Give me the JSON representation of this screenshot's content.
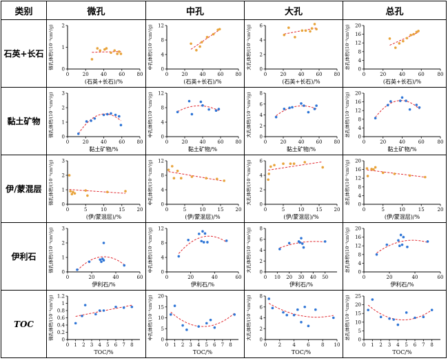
{
  "header": {
    "category": "类别",
    "columns": [
      "微孔",
      "中孔",
      "大孔",
      "总孔"
    ]
  },
  "rows": [
    {
      "label": "石英+长石",
      "italic": false
    },
    {
      "label": "黏土矿物",
      "italic": false
    },
    {
      "label": "伊/蒙混层",
      "italic": false
    },
    {
      "label": "伊利石",
      "italic": false
    },
    {
      "label": "TOC",
      "italic": true
    }
  ],
  "colors": {
    "points": "#2e75d6",
    "orange": "#e8a33a",
    "fit": "#e0242a",
    "axis": "#000000"
  },
  "chart_data": [
    {
      "type": "scatter",
      "row": 0,
      "col": 0,
      "title": "",
      "xlabel": "(石英+长石)/%",
      "ylabel": "微孔体积/(10⁻³cm³/g)",
      "xlim": [
        0,
        80
      ],
      "ylim": [
        0,
        2
      ],
      "xticks": [
        0,
        20,
        40,
        60,
        80
      ],
      "yticks": [
        0,
        1,
        2
      ],
      "point_color": "orange",
      "fit": "linear",
      "series": [
        {
          "x": [
            27,
            33,
            36,
            41,
            43,
            48,
            52,
            55,
            57,
            59
          ],
          "y": [
            0.45,
            0.95,
            0.85,
            0.9,
            0.95,
            0.75,
            0.85,
            0.7,
            0.8,
            0.7
          ]
        }
      ]
    },
    {
      "type": "scatter",
      "row": 0,
      "col": 1,
      "title": "",
      "xlabel": "(石英+长石)/%",
      "ylabel": "中孔体积/(10⁻³cm³/g)",
      "xlim": [
        0,
        80
      ],
      "ylim": [
        0,
        12
      ],
      "xticks": [
        0,
        20,
        40,
        60,
        80
      ],
      "yticks": [
        0,
        4,
        8,
        12
      ],
      "point_color": "orange",
      "fit": "linear",
      "series": [
        {
          "x": [
            27,
            33,
            37,
            39,
            45,
            52,
            57,
            59
          ],
          "y": [
            7,
            5.2,
            6.2,
            7.4,
            8.8,
            9.6,
            10.8,
            11
          ]
        }
      ]
    },
    {
      "type": "scatter",
      "row": 0,
      "col": 2,
      "title": "",
      "xlabel": "(石英+长石)/%",
      "ylabel": "大孔体积/(10⁻³cm³/g)",
      "xlim": [
        0,
        80
      ],
      "ylim": [
        0,
        6
      ],
      "xticks": [
        0,
        20,
        40,
        60,
        80
      ],
      "yticks": [
        0,
        2,
        4,
        6
      ],
      "point_color": "orange",
      "fit": "linear",
      "series": [
        {
          "x": [
            21,
            26,
            33,
            41,
            45,
            50,
            52,
            55,
            57
          ],
          "y": [
            4.7,
            5.7,
            4.4,
            5.3,
            5.3,
            5.2,
            5.6,
            6.2,
            5.5
          ]
        }
      ]
    },
    {
      "type": "scatter",
      "row": 0,
      "col": 3,
      "title": "",
      "xlabel": "(石英+长石)/%",
      "ylabel": "总孔体积/(10⁻³cm³/g)",
      "xlim": [
        0,
        80
      ],
      "ylim": [
        0,
        20
      ],
      "xticks": [
        0,
        20,
        40,
        60,
        80
      ],
      "yticks": [
        0,
        4,
        8,
        12,
        16,
        20
      ],
      "point_color": "orange",
      "fit": "linear",
      "series": [
        {
          "x": [
            27,
            33,
            37,
            41,
            45,
            49,
            52,
            55,
            57
          ],
          "y": [
            14,
            9.8,
            11.8,
            12.8,
            14.2,
            15.6,
            16,
            17,
            17.5
          ]
        }
      ]
    },
    {
      "type": "scatter",
      "row": 1,
      "col": 0,
      "title": "",
      "xlabel": "黏土矿物/%",
      "ylabel": "微孔体积/(10⁻³cm³/g)",
      "xlim": [
        0,
        80
      ],
      "ylim": [
        0,
        3
      ],
      "xticks": [
        0,
        20,
        40,
        60,
        80
      ],
      "yticks": [
        0,
        1,
        2,
        3
      ],
      "point_color": "points",
      "fit": "quadratic",
      "series": [
        {
          "x": [
            12,
            21,
            26,
            30,
            40,
            44,
            48,
            53,
            57,
            59
          ],
          "y": [
            0.2,
            1.05,
            1.1,
            1.25,
            1.5,
            1.55,
            1.6,
            1.5,
            1.4,
            0.8
          ]
        }
      ]
    },
    {
      "type": "scatter",
      "row": 1,
      "col": 1,
      "title": "",
      "xlabel": "黏土矿物/%",
      "ylabel": "中孔体积/(10⁻³cm³/g)",
      "xlim": [
        0,
        80
      ],
      "ylim": [
        0,
        12
      ],
      "xticks": [
        0,
        20,
        40,
        60,
        80
      ],
      "yticks": [
        0,
        4,
        8,
        12
      ],
      "point_color": "points",
      "fit": "quadratic",
      "series": [
        {
          "x": [
            12,
            25,
            28,
            38,
            40,
            47,
            55,
            58
          ],
          "y": [
            6.8,
            9.8,
            6.2,
            9.6,
            8.6,
            7.5,
            7.2,
            7.6
          ]
        }
      ]
    },
    {
      "type": "scatter",
      "row": 1,
      "col": 2,
      "title": "",
      "xlabel": "黏土矿物/%",
      "ylabel": "大孔体积/(10⁻³cm³/g)",
      "xlim": [
        0,
        80
      ],
      "ylim": [
        0,
        8
      ],
      "xticks": [
        0,
        20,
        40,
        60,
        80
      ],
      "yticks": [
        0,
        2,
        4,
        6,
        8
      ],
      "point_color": "points",
      "fit": "quadratic",
      "series": [
        {
          "x": [
            12,
            21,
            27,
            30,
            40,
            43,
            48,
            55,
            57
          ],
          "y": [
            3.6,
            5.1,
            5.3,
            5.4,
            6.1,
            5.7,
            4.5,
            5.1,
            5.7
          ]
        }
      ]
    },
    {
      "type": "scatter",
      "row": 1,
      "col": 3,
      "title": "",
      "xlabel": "黏土矿物/%",
      "ylabel": "总孔体积/(10⁻³cm³/g)",
      "xlim": [
        0,
        80
      ],
      "ylim": [
        0,
        20
      ],
      "xticks": [
        0,
        20,
        40,
        60,
        80
      ],
      "yticks": [
        0,
        4,
        8,
        12,
        16,
        20
      ],
      "point_color": "points",
      "fit": "quadratic",
      "series": [
        {
          "x": [
            12,
            25,
            28,
            38,
            40,
            44,
            48,
            55,
            58
          ],
          "y": [
            8.5,
            14.5,
            16.2,
            16.5,
            18,
            16.5,
            12.5,
            14.6,
            13.4
          ]
        }
      ]
    },
    {
      "type": "scatter",
      "row": 2,
      "col": 0,
      "title": "",
      "xlabel": "(伊/蒙混层)/%",
      "ylabel": "微孔体积/(10⁻³cm³/g)",
      "xlim": [
        0,
        20
      ],
      "ylim": [
        0,
        3
      ],
      "xticks": [
        0,
        5,
        10,
        15,
        20
      ],
      "yticks": [
        0,
        1,
        2,
        3
      ],
      "point_color": "orange",
      "fit": "linear",
      "series": [
        {
          "x": [
            0.5,
            0.8,
            1.2,
            1.5,
            2,
            5,
            5.5,
            11,
            16
          ],
          "y": [
            2,
            0.9,
            0.7,
            0.85,
            0.75,
            0.95,
            0.6,
            0.85,
            0.9
          ]
        }
      ]
    },
    {
      "type": "scatter",
      "row": 2,
      "col": 1,
      "title": "",
      "xlabel": "(伊/蒙混层)/%",
      "ylabel": "中孔体积/(10⁻³cm³/g)",
      "xlim": [
        0,
        20
      ],
      "ylim": [
        0,
        12
      ],
      "xticks": [
        0,
        5,
        10,
        15,
        20
      ],
      "yticks": [
        0,
        4,
        8,
        12
      ],
      "point_color": "orange",
      "fit": "linear",
      "series": [
        {
          "x": [
            0.5,
            1.5,
            2,
            3,
            4,
            7,
            11,
            14,
            16
          ],
          "y": [
            9.5,
            10.5,
            7.2,
            9.2,
            7.2,
            7.6,
            7.2,
            7,
            6.5
          ]
        }
      ]
    },
    {
      "type": "scatter",
      "row": 2,
      "col": 2,
      "title": "",
      "xlabel": "(伊/蒙混层)/%",
      "ylabel": "大孔体积/(10⁻³cm³/g)",
      "xlim": [
        0,
        20
      ],
      "ylim": [
        0,
        6
      ],
      "xticks": [
        0,
        5,
        10,
        15,
        20
      ],
      "yticks": [
        0,
        2,
        4,
        6
      ],
      "point_color": "orange",
      "fit": "linear",
      "series": [
        {
          "x": [
            0.8,
            1,
            1.5,
            2.5,
            5,
            7,
            8,
            11,
            16
          ],
          "y": [
            3.4,
            4.2,
            5.2,
            5.4,
            5.6,
            5.6,
            5.6,
            5.8,
            5.1
          ]
        }
      ]
    },
    {
      "type": "scatter",
      "row": 2,
      "col": 3,
      "title": "",
      "xlabel": "(伊/蒙混层)/%",
      "ylabel": "总孔体积/(10⁻³cm³/g)",
      "xlim": [
        0,
        20
      ],
      "ylim": [
        0,
        20
      ],
      "xticks": [
        0,
        5,
        10,
        15,
        20
      ],
      "yticks": [
        0,
        4,
        8,
        12,
        16,
        20
      ],
      "point_color": "orange",
      "fit": "linear",
      "series": [
        {
          "x": [
            0.8,
            1,
            2,
            2.5,
            3,
            5,
            8,
            12,
            16
          ],
          "y": [
            16.5,
            13,
            16.2,
            16,
            17,
            14.5,
            14,
            13.2,
            12.5
          ]
        }
      ]
    },
    {
      "type": "scatter",
      "row": 3,
      "col": 0,
      "title": "",
      "xlabel": "伊利石/%",
      "ylabel": "微孔体积/(10⁻³cm³/g)",
      "xlim": [
        0,
        60
      ],
      "ylim": [
        0,
        3
      ],
      "xticks": [
        0,
        20,
        40,
        60
      ],
      "yticks": [
        0,
        1,
        2,
        3
      ],
      "point_color": "points",
      "fit": "quadratic",
      "series": [
        {
          "x": [
            8,
            18,
            27,
            28,
            29,
            30,
            30,
            47
          ],
          "y": [
            0.15,
            0.7,
            0.85,
            0.7,
            0.9,
            0.8,
            2,
            0.45
          ]
        }
      ]
    },
    {
      "type": "scatter",
      "row": 3,
      "col": 1,
      "title": "",
      "xlabel": "伊利石/%",
      "ylabel": "中孔体积/(10⁻³cm³/g)",
      "xlim": [
        0,
        60
      ],
      "ylim": [
        0,
        12
      ],
      "xticks": [
        0,
        20,
        40,
        60
      ],
      "yticks": [
        0,
        4,
        8,
        12
      ],
      "point_color": "points",
      "fit": "quadratic",
      "series": [
        {
          "x": [
            10,
            18,
            27,
            29,
            30,
            31,
            32,
            34,
            50
          ],
          "y": [
            4.3,
            8.8,
            10.5,
            8.5,
            11.2,
            8.2,
            10.6,
            8.2,
            8.6
          ]
        }
      ]
    },
    {
      "type": "scatter",
      "row": 3,
      "col": 2,
      "title": "",
      "xlabel": "伊利石/%",
      "ylabel": "大孔体积/(10⁻³cm³/g)",
      "xlim": [
        0,
        60
      ],
      "ylim": [
        0,
        8
      ],
      "xticks": [
        0,
        10,
        20,
        30,
        40,
        50
      ],
      "yticks": [
        0,
        2,
        4,
        6,
        8
      ],
      "point_color": "points",
      "fit": "quadratic",
      "series": [
        {
          "x": [
            12,
            20,
            28,
            29,
            30,
            31,
            32,
            50
          ],
          "y": [
            4.2,
            5.3,
            5.6,
            5.4,
            6.2,
            5.2,
            4.5,
            5.6
          ]
        }
      ]
    },
    {
      "type": "scatter",
      "row": 3,
      "col": 3,
      "title": "",
      "xlabel": "伊利石/%",
      "ylabel": "总孔体积/(10⁻³cm³/g)",
      "xlim": [
        0,
        60
      ],
      "ylim": [
        0,
        20
      ],
      "xticks": [
        0,
        20,
        40,
        60
      ],
      "yticks": [
        0,
        4,
        8,
        12,
        16,
        20
      ],
      "point_color": "points",
      "fit": "quadratic",
      "series": [
        {
          "x": [
            10,
            18,
            27,
            28,
            29,
            30,
            31,
            34,
            50
          ],
          "y": [
            8,
            12.5,
            14.5,
            12,
            17,
            12.5,
            16,
            11.5,
            14
          ]
        }
      ]
    },
    {
      "type": "scatter",
      "row": 4,
      "col": 0,
      "title": "",
      "xlabel": "TOC/%",
      "ylabel": "微孔体积/(10⁻³cm³/g)",
      "xlim": [
        0,
        9
      ],
      "ylim": [
        0,
        1.2
      ],
      "xticks": [
        0,
        1,
        2,
        3,
        4,
        5,
        6,
        7,
        8
      ],
      "yticks": [
        0,
        0.2,
        0.4,
        0.6,
        0.8,
        1.0,
        1.2
      ],
      "point_color": "points",
      "fit": "linear",
      "series": [
        {
          "x": [
            1,
            1.8,
            2.2,
            3.5,
            4,
            4.5,
            6,
            7,
            8
          ],
          "y": [
            0.45,
            0.65,
            0.95,
            0.7,
            0.8,
            0.8,
            0.9,
            0.88,
            0.9
          ]
        }
      ]
    },
    {
      "type": "scatter",
      "row": 4,
      "col": 1,
      "title": "",
      "xlabel": "TOC/%",
      "ylabel": "中孔体积/(10⁻³cm³/g)",
      "xlim": [
        0,
        9
      ],
      "ylim": [
        0,
        20
      ],
      "xticks": [
        0,
        1,
        2,
        3,
        4,
        5,
        6,
        7,
        8
      ],
      "yticks": [
        0,
        5,
        10,
        15,
        20
      ],
      "point_color": "points",
      "fit": "quadratic",
      "series": [
        {
          "x": [
            0.5,
            1,
            2,
            2.5,
            4,
            5,
            5.5,
            6,
            8.5
          ],
          "y": [
            11.5,
            15.5,
            6.5,
            4.5,
            6,
            7.5,
            9,
            5.5,
            11.5
          ]
        }
      ]
    },
    {
      "type": "scatter",
      "row": 4,
      "col": 2,
      "title": "",
      "xlabel": "TOC/%",
      "ylabel": "大孔体积/(10⁻³cm³/g)",
      "xlim": [
        0,
        10
      ],
      "ylim": [
        0,
        8
      ],
      "xticks": [
        0,
        2,
        4,
        6,
        8,
        10
      ],
      "yticks": [
        0,
        2,
        4,
        6,
        8
      ],
      "point_color": "points",
      "fit": "quadratic",
      "series": [
        {
          "x": [
            0.5,
            1,
            2.5,
            3,
            4,
            4.5,
            5,
            5.5,
            6,
            7,
            9.5
          ],
          "y": [
            7.5,
            5.8,
            5,
            4.5,
            4.5,
            5.5,
            3.2,
            6,
            2.5,
            5.5,
            4
          ]
        }
      ]
    },
    {
      "type": "scatter",
      "row": 4,
      "col": 3,
      "title": "",
      "xlabel": "TOC/%",
      "ylabel": "总孔体积/(10⁻³cm³/g)",
      "xlim": [
        0,
        9
      ],
      "ylim": [
        0,
        25
      ],
      "xticks": [
        0,
        1,
        2,
        3,
        4,
        5,
        6,
        7,
        8
      ],
      "yticks": [
        0,
        5,
        10,
        15,
        20,
        25
      ],
      "point_color": "points",
      "fit": "quadratic",
      "series": [
        {
          "x": [
            0.5,
            1,
            2,
            3,
            3.5,
            4,
            5,
            6,
            7,
            8
          ],
          "y": [
            17,
            23,
            13,
            12,
            11.5,
            8.5,
            15.5,
            12.5,
            13,
            17
          ]
        }
      ]
    }
  ]
}
